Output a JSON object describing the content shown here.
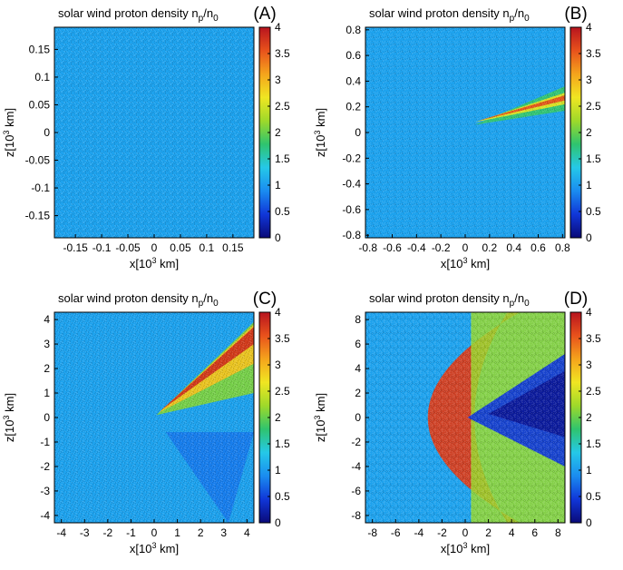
{
  "colorbar": {
    "stops": [
      "#0a0a78",
      "#1036d8",
      "#1a8cf0",
      "#25c8e8",
      "#2fc46e",
      "#9ed92a",
      "#f0e622",
      "#f5a41c",
      "#e8521c",
      "#b8141e"
    ],
    "range": [
      0,
      4
    ],
    "ticks": [
      "0",
      "0.5",
      "1",
      "1.5",
      "2",
      "2.5",
      "3",
      "3.5",
      "4"
    ],
    "tick_values": [
      0,
      0.5,
      1,
      1.5,
      2,
      2.5,
      3,
      3.5,
      4
    ]
  },
  "chart_data": [
    {
      "type": "heatmap",
      "panel": "(A)",
      "title": "solar wind proton density n",
      "title_sub_p": "p",
      "title_mid": "/n",
      "title_sub_0": "0",
      "xlabel": "x[10",
      "xlabel_sup": "3",
      "xlabel_end": " km]",
      "ylabel": "z[10",
      "ylabel_sup": "3",
      "ylabel_end": " km]",
      "xlim": [
        -0.19,
        0.19
      ],
      "ylim": [
        -0.19,
        0.19
      ],
      "xticks": [
        -0.15,
        -0.1,
        -0.05,
        0,
        0.05,
        0.1,
        0.15
      ],
      "xtick_labels": [
        "-0.15",
        "-0.1",
        "-0.05",
        "0",
        "0.05",
        "0.1",
        "0.15"
      ],
      "yticks": [
        0.15,
        0.1,
        0.05,
        0,
        -0.05,
        -0.1,
        -0.15
      ],
      "ytick_labels": [
        "0.15",
        "0.1",
        "0.05",
        "0",
        "-0.05",
        "-0.1",
        "-0.15"
      ],
      "background_value": 1.05,
      "features": []
    },
    {
      "type": "heatmap",
      "panel": "(B)",
      "title": "solar wind proton density n",
      "title_sub_p": "p",
      "title_mid": "/n",
      "title_sub_0": "0",
      "xlabel": "x[10",
      "xlabel_sup": "3",
      "xlabel_end": " km]",
      "ylabel": "z[10",
      "ylabel_sup": "3",
      "ylabel_end": " km]",
      "xlim": [
        -0.82,
        0.82
      ],
      "ylim": [
        -0.82,
        0.82
      ],
      "xticks": [
        -0.8,
        -0.6,
        -0.4,
        -0.2,
        0,
        0.2,
        0.4,
        0.6,
        0.8
      ],
      "xtick_labels": [
        "-0.8",
        "-0.6",
        "-0.4",
        "-0.2",
        "0",
        "0.2",
        "0.4",
        "0.6",
        "0.8"
      ],
      "yticks": [
        0.8,
        0.6,
        0.4,
        0.2,
        0,
        -0.2,
        -0.4,
        -0.6,
        -0.8
      ],
      "ytick_labels": [
        "0.8",
        "0.6",
        "0.4",
        "0.2",
        "0",
        "-0.2",
        "-0.4",
        "-0.6",
        "-0.8"
      ],
      "background_value": 1.05,
      "features": [
        {
          "kind": "wedge",
          "apex": [
            0.08,
            0.06
          ],
          "upper": [
            0.82,
            0.36
          ],
          "lower": [
            0.82,
            0.17
          ],
          "value": 1.8
        },
        {
          "kind": "wedge",
          "apex": [
            0.08,
            0.08
          ],
          "upper": [
            0.82,
            0.31
          ],
          "lower": [
            0.82,
            0.22
          ],
          "value": 2.6
        },
        {
          "kind": "wedge",
          "apex": [
            0.1,
            0.09
          ],
          "upper": [
            0.82,
            0.29
          ],
          "lower": [
            0.82,
            0.25
          ],
          "value": 3.6
        }
      ]
    },
    {
      "type": "heatmap",
      "panel": "(C)",
      "title": "solar wind proton density n",
      "title_sub_p": "p",
      "title_mid": "/n",
      "title_sub_0": "0",
      "xlabel": "x[10",
      "xlabel_sup": "3",
      "xlabel_end": " km]",
      "ylabel": "z[10",
      "ylabel_sup": "3",
      "ylabel_end": " km]",
      "xlim": [
        -4.3,
        4.3
      ],
      "ylim": [
        -4.3,
        4.3
      ],
      "xticks": [
        -4,
        -3,
        -2,
        -1,
        0,
        1,
        2,
        3,
        4
      ],
      "xtick_labels": [
        "-4",
        "-3",
        "-2",
        "-1",
        "0",
        "1",
        "2",
        "3",
        "4"
      ],
      "yticks": [
        4,
        3,
        2,
        1,
        0,
        -1,
        -2,
        -3,
        -4
      ],
      "ytick_labels": [
        "4",
        "3",
        "2",
        "1",
        "0",
        "-1",
        "-2",
        "-3",
        "-4"
      ],
      "background_value": 1.05,
      "features": [
        {
          "kind": "wedge",
          "apex": [
            0.1,
            0.1
          ],
          "upper": [
            4.3,
            3.9
          ],
          "lower": [
            4.3,
            1.0
          ],
          "value": 2.1
        },
        {
          "kind": "wedge",
          "apex": [
            0.2,
            0.2
          ],
          "upper": [
            4.3,
            3.8
          ],
          "lower": [
            4.3,
            2.2
          ],
          "value": 2.9
        },
        {
          "kind": "wedge",
          "apex": [
            0.3,
            0.3
          ],
          "upper": [
            4.3,
            3.7
          ],
          "lower": [
            4.3,
            3.0
          ],
          "value": 3.8
        },
        {
          "kind": "wedge",
          "apex": [
            0.5,
            -0.6
          ],
          "upper": [
            4.3,
            -0.6
          ],
          "lower": [
            3.2,
            -4.3
          ],
          "value": 0.8
        }
      ]
    },
    {
      "type": "heatmap",
      "panel": "(D)",
      "title": "solar wind proton density n",
      "title_sub_p": "p",
      "title_mid": "/n",
      "title_sub_0": "0",
      "xlabel": "x[10",
      "xlabel_sup": "3",
      "xlabel_end": " km]",
      "ylabel": "z[10",
      "ylabel_sup": "3",
      "ylabel_end": " km]",
      "xlim": [
        -8.6,
        8.6
      ],
      "ylim": [
        -8.6,
        8.6
      ],
      "xticks": [
        -8,
        -6,
        -4,
        -2,
        0,
        2,
        4,
        6,
        8
      ],
      "xtick_labels": [
        "-8",
        "-6",
        "-4",
        "-2",
        "0",
        "2",
        "4",
        "6",
        "8"
      ],
      "yticks": [
        8,
        6,
        4,
        2,
        0,
        -2,
        -4,
        -6,
        -8
      ],
      "ytick_labels": [
        "8",
        "6",
        "4",
        "2",
        "0",
        "-2",
        "-4",
        "-6",
        "-8"
      ],
      "background_value": 1.05,
      "features": [
        {
          "kind": "bowshock",
          "center": [
            -1.5,
            0
          ],
          "r_inner": 1.2,
          "r_outer": 3.6,
          "value": 3.7
        },
        {
          "kind": "region",
          "x_from": 0.5,
          "value": 2.2
        },
        {
          "kind": "wedge",
          "apex": [
            0.2,
            0
          ],
          "upper": [
            8.6,
            5.2
          ],
          "lower": [
            8.6,
            -4.0
          ],
          "value": 0.45
        },
        {
          "kind": "wedge",
          "apex": [
            2.0,
            0.3
          ],
          "upper": [
            8.6,
            3.8
          ],
          "lower": [
            8.6,
            -1.6
          ],
          "value": 0.15
        }
      ]
    }
  ]
}
